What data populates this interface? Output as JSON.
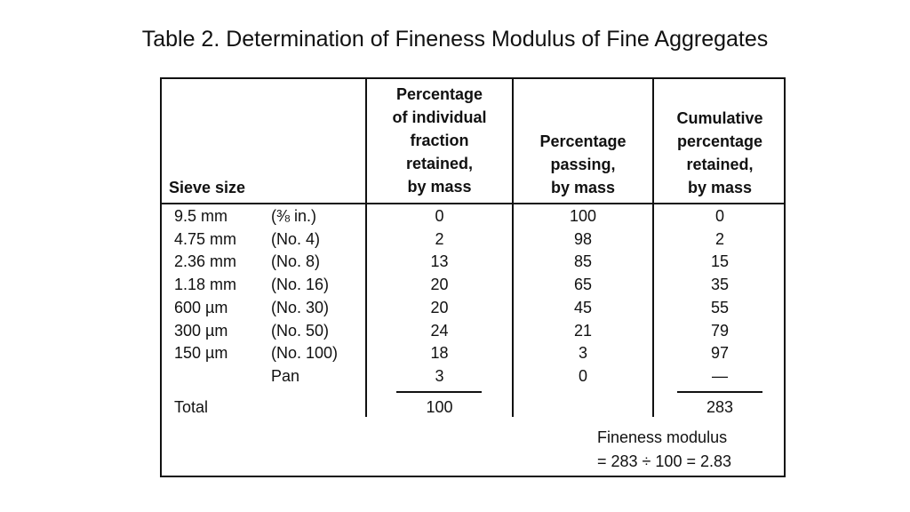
{
  "title": "Table 2. Determination of Fineness Modulus of Fine Aggregates",
  "table": {
    "headers": {
      "sieve": "Sieve size",
      "individual": [
        "Percentage",
        "of individual",
        "fraction",
        "retained,",
        "by mass"
      ],
      "passing": [
        "Percentage",
        "passing,",
        "by mass"
      ],
      "cumulative": [
        "Cumulative",
        "percentage",
        "retained,",
        "by mass"
      ]
    },
    "rows": [
      {
        "size": "9.5 mm",
        "no": "(⅜ in.)",
        "individual": "0",
        "passing": "100",
        "cumulative": "0"
      },
      {
        "size": "4.75 mm",
        "no": "(No. 4)",
        "individual": "2",
        "passing": "98",
        "cumulative": "2"
      },
      {
        "size": "2.36 mm",
        "no": "(No. 8)",
        "individual": "13",
        "passing": "85",
        "cumulative": "15"
      },
      {
        "size": "1.18 mm",
        "no": "(No. 16)",
        "individual": "20",
        "passing": "65",
        "cumulative": "35"
      },
      {
        "size": "600 µm",
        "no": "(No. 30)",
        "individual": "20",
        "passing": "45",
        "cumulative": "55"
      },
      {
        "size": "300 µm",
        "no": "(No. 50)",
        "individual": "24",
        "passing": "21",
        "cumulative": "79"
      },
      {
        "size": "150 µm",
        "no": "(No. 100)",
        "individual": "18",
        "passing": "3",
        "cumulative": "97"
      },
      {
        "size": "",
        "no": "Pan",
        "individual": "3",
        "passing": "0",
        "cumulative": "—"
      }
    ],
    "total": {
      "label": "Total",
      "individual": "100",
      "cumulative": "283"
    },
    "fineness": {
      "line1": "Fineness modulus",
      "line2": "= 283 ÷ 100 = 2.83"
    }
  }
}
